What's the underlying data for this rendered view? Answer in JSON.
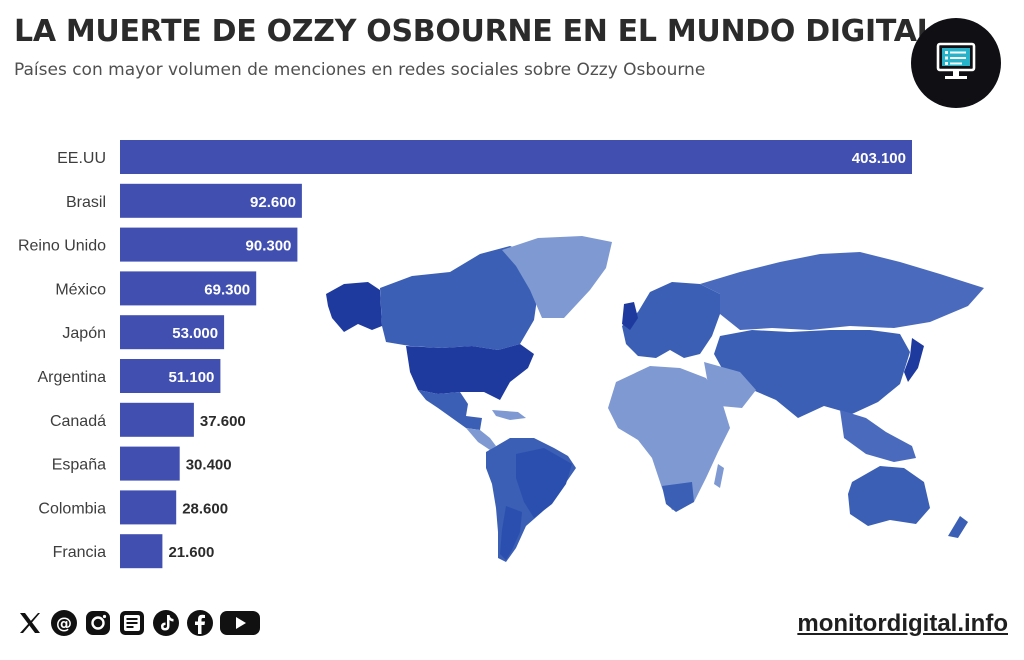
{
  "header": {
    "title": "LA MUERTE DE OZZY OSBOURNE EN EL MUNDO DIGITAL",
    "subtitle": "Países con mayor volumen de menciones en redes sociales sobre Ozzy Osbourne"
  },
  "logo": {
    "icon": "monitor-icon"
  },
  "colors": {
    "bar": "#4150b0",
    "label_inside": "#ffffff",
    "label_outside": "#2b2b2b",
    "map_dark": "#1e3a9f",
    "map_mid": "#3a5fb5",
    "map_light": "#7f99d2"
  },
  "chart_data": {
    "type": "bar",
    "orientation": "horizontal",
    "title": "LA MUERTE DE OZZY OSBOURNE EN EL MUNDO DIGITAL",
    "subtitle": "Países con mayor volumen de menciones en redes sociales sobre Ozzy Osbourne",
    "categories": [
      "EE.UU",
      "Brasil",
      "Reino Unido",
      "México",
      "Japón",
      "Argentina",
      "Canadá",
      "España",
      "Colombia",
      "Francia"
    ],
    "values": [
      403100,
      92600,
      90300,
      69300,
      53000,
      51100,
      37600,
      30400,
      28600,
      21600
    ],
    "value_labels": [
      "403.100",
      "92.600",
      "90.300",
      "69.300",
      "53.000",
      "51.100",
      "37.600",
      "30.400",
      "28.600",
      "21.600"
    ],
    "xlim": [
      0,
      403100
    ],
    "grid": false,
    "legend": "none",
    "background": "world choropleth map"
  },
  "footer": {
    "social_icons": [
      "x-icon",
      "threads-icon",
      "instagram-icon",
      "newsletter-icon",
      "tiktok-icon",
      "facebook-icon",
      "youtube-icon"
    ],
    "site": "monitordigital.info"
  }
}
